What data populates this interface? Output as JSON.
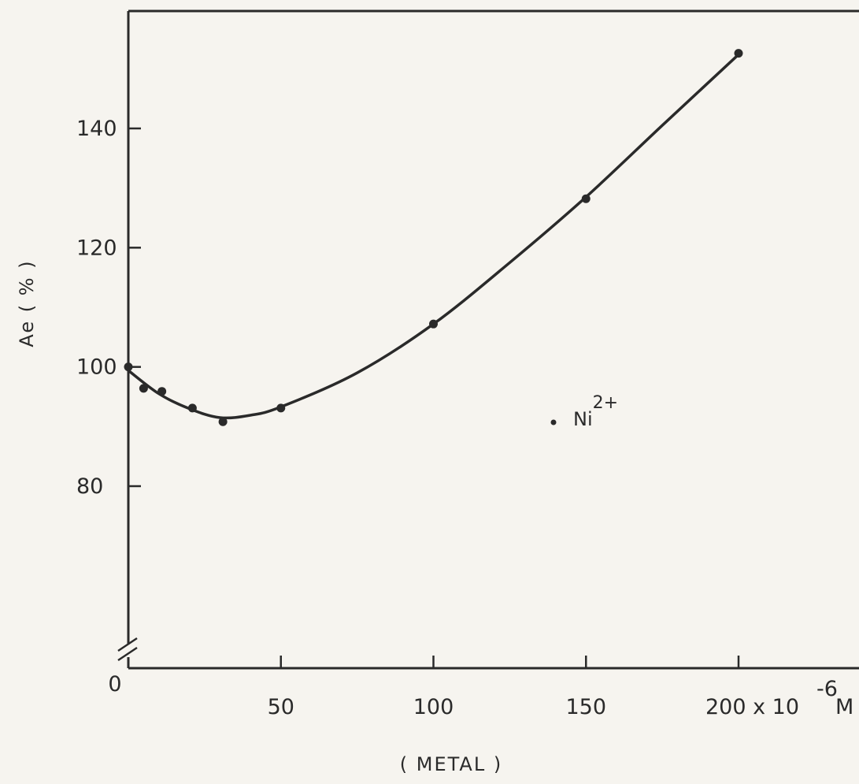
{
  "chart_data": {
    "type": "line",
    "xlabel": "( METAL )",
    "ylabel": "Ae ( % )",
    "xlim": [
      0,
      240
    ],
    "ylim": [
      55,
      155
    ],
    "x_ticks": [
      50,
      100,
      150
    ],
    "x_last_tick": {
      "value": 200,
      "label": "200 x 10",
      "exp": "-6",
      "unit": "M"
    },
    "x_origin_label": "0",
    "y_ticks": [
      80,
      100,
      120,
      140
    ],
    "axis_break": true,
    "grid": false,
    "series": [
      {
        "name": "Ni",
        "name_sup": "2+",
        "points": [
          {
            "x": 0,
            "y": 100
          },
          {
            "x": 5,
            "y": 96.4
          },
          {
            "x": 11,
            "y": 95.9
          },
          {
            "x": 21,
            "y": 93.1
          },
          {
            "x": 31,
            "y": 90.8
          },
          {
            "x": 50,
            "y": 93.1
          },
          {
            "x": 100,
            "y": 107.2
          },
          {
            "x": 150,
            "y": 128.2
          },
          {
            "x": 200,
            "y": 152.6
          }
        ],
        "curve": [
          {
            "x": 0,
            "y": 99.4
          },
          {
            "x": 10,
            "y": 95.5
          },
          {
            "x": 20,
            "y": 93.0
          },
          {
            "x": 30,
            "y": 91.5
          },
          {
            "x": 40,
            "y": 91.9
          },
          {
            "x": 50,
            "y": 93.3
          },
          {
            "x": 75,
            "y": 99.0
          },
          {
            "x": 100,
            "y": 107.2
          },
          {
            "x": 125,
            "y": 117.5
          },
          {
            "x": 150,
            "y": 128.5
          },
          {
            "x": 175,
            "y": 140.5
          },
          {
            "x": 200,
            "y": 152.4
          }
        ]
      }
    ],
    "legend": {
      "position": "center-right"
    }
  }
}
